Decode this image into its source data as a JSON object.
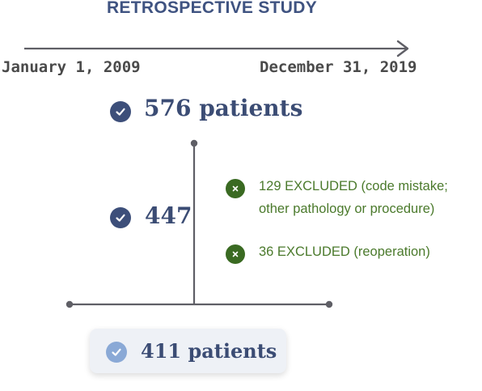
{
  "title": "RETROSPECTIVE STUDY",
  "timeline": {
    "start_date": "January 1, 2009",
    "end_date": "December 31, 2019"
  },
  "steps": {
    "initial": "576 patients",
    "intermediate": "447",
    "final": "411 patients"
  },
  "exclusions": [
    {
      "line1": "129 EXCLUDED (code mistake;",
      "line2": "other pathology or procedure)"
    },
    {
      "line1": "36 EXCLUDED (reoperation)"
    }
  ],
  "colors": {
    "navy": "#3d4f7a",
    "light_blue": "#8aa9d6",
    "green": "#4b7a2c",
    "dark_green": "#3a6a22",
    "line_gray": "#5f5f66"
  },
  "icons": {
    "included": "check-circle-icon",
    "excluded": "x-circle-icon"
  }
}
